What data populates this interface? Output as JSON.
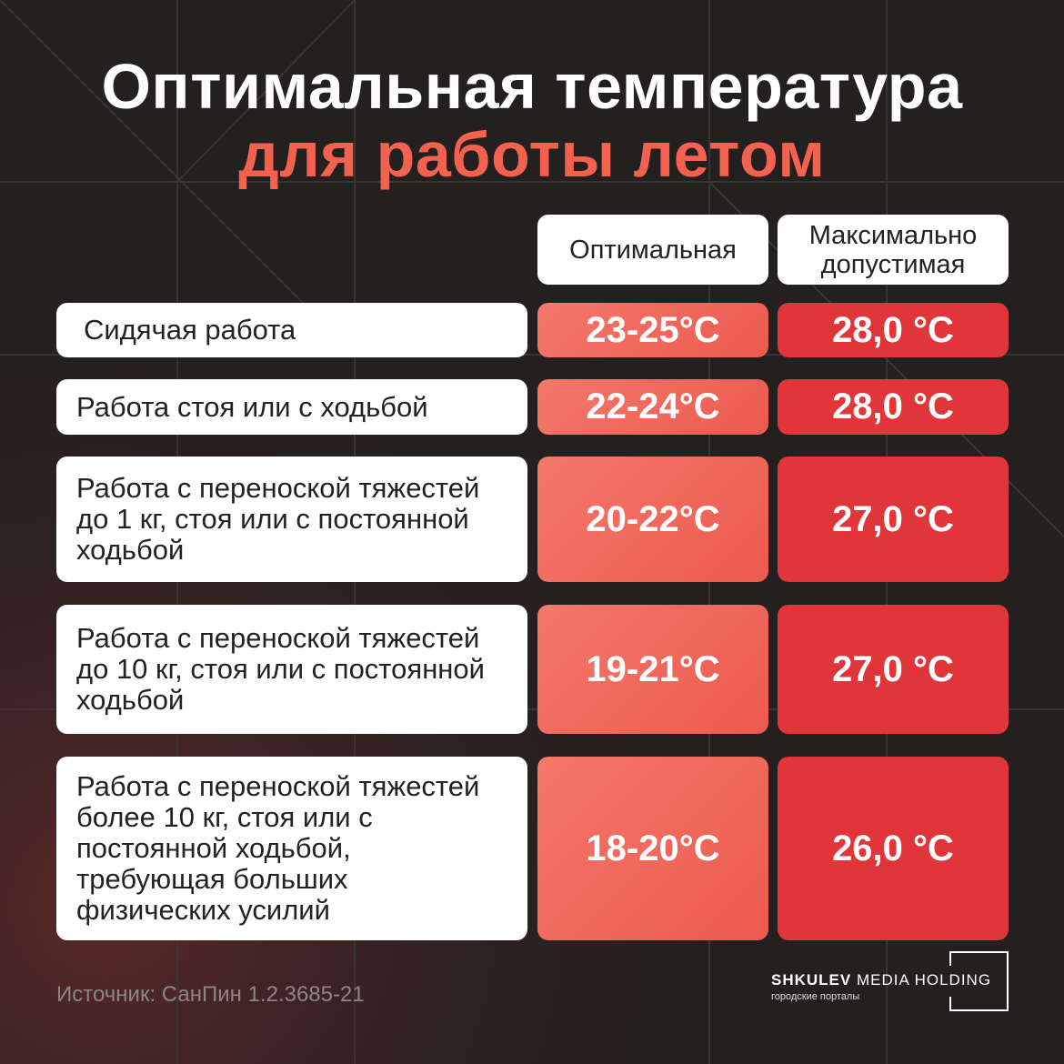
{
  "header": {
    "title_line1": "Оптимальная температура",
    "title_line2": "для работы летом"
  },
  "table": {
    "columns": [
      "Оптимальная",
      "Максимально допустимая"
    ],
    "rows": [
      {
        "label": "Сидячая работа",
        "optimal": "23-25°C",
        "max": "28,0 °C"
      },
      {
        "label": "Работа стоя или с ходьбой",
        "optimal": "22-24°C",
        "max": "28,0 °C"
      },
      {
        "label": "Работа с переноской тяжестей до 1 кг, стоя или с постоянной ходьбой",
        "optimal": "20-22°C",
        "max": "27,0 °C"
      },
      {
        "label": "Работа с переноской тяжестей до 10 кг, стоя или с постоянной ходьбой",
        "optimal": "19-21°C",
        "max": "27,0 °C"
      },
      {
        "label": "Работа с переноской тяжестей более 10 кг, стоя или с постоянной ходьбой, требующая больших физических усилий",
        "optimal": "18-20°C",
        "max": "26,0 °C"
      }
    ]
  },
  "footer": {
    "source": "Источник: СанПин 1.2.3685-21",
    "brand_bold": "SHKULEV",
    "brand_rest": "MEDIA HOLDING",
    "tagline": "городские порталы"
  }
}
